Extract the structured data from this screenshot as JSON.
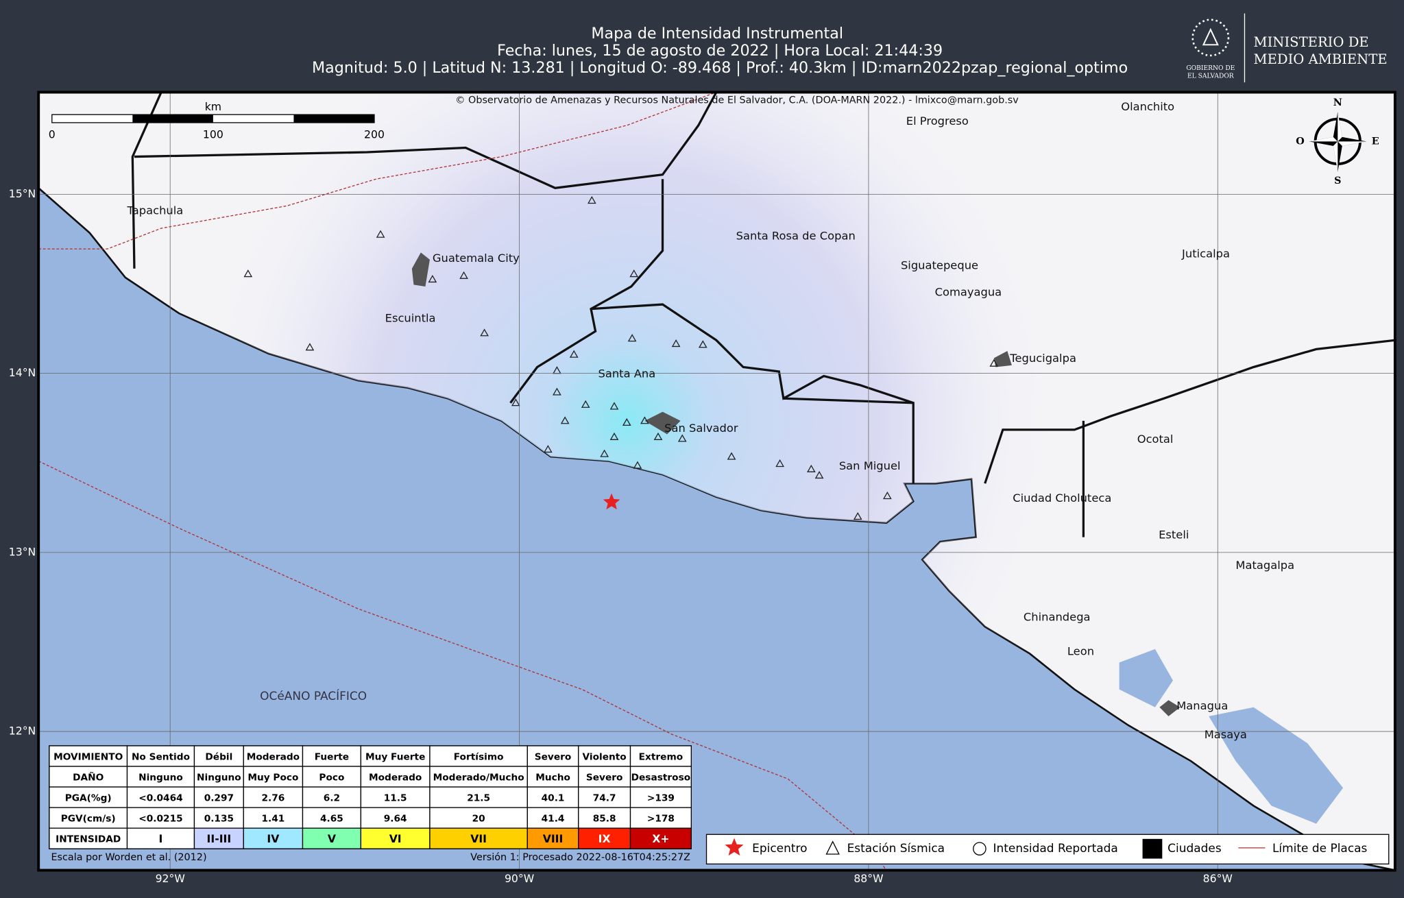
{
  "header": {
    "title": "Mapa de Intensidad Instrumental",
    "line2": "Fecha: lunes, 15 de agosto de 2022 | Hora Local: 21:44:39",
    "line3": "Magnitud: 5.0 | Latitud N: 13.281 | Longitud O: -89.468 | Prof.: 40.3km | ID:marn2022pzap_regional_optimo"
  },
  "logo": {
    "small1": "GOBIERNO DE",
    "small2": "EL SALVADOR",
    "name1": "MINISTERIO DE",
    "name2": "MEDIO AMBIENTE"
  },
  "map": {
    "copyright": "© Observatorio de Amenazas y Recursos Naturales de El Salvador, C.A. (DOA-MARN 2022.) - lmixco@marn.gob.sv",
    "lon_ticks": [
      {
        "value": -92,
        "label": "92°W"
      },
      {
        "value": -90,
        "label": "90°W"
      },
      {
        "value": -88,
        "label": "88°W"
      },
      {
        "value": -86,
        "label": "86°W"
      }
    ],
    "lat_ticks": [
      {
        "value": 15,
        "label": "15°N"
      },
      {
        "value": 14,
        "label": "14°N"
      },
      {
        "value": 13,
        "label": "13°N"
      },
      {
        "value": 12,
        "label": "12°N"
      }
    ],
    "scale": {
      "unit": "km",
      "ticks": [
        0,
        100,
        200
      ]
    },
    "compass": {
      "n": "N",
      "s": "S",
      "e": "E",
      "w": "O"
    },
    "ocean": "OCéANO PACÍFICO",
    "cities": [
      "Tapachula",
      "Guatemala City",
      "Escuintla",
      "Santa Ana",
      "San Salvador",
      "San Miguel",
      "Santa Rosa de Copan",
      "El Progreso",
      "Olanchito",
      "Siguatepeque",
      "Comayagua",
      "Juticalpa",
      "Tegucigalpa",
      "Ocotal",
      "Ciudad Choluteca",
      "Esteli",
      "Matagalpa",
      "Chinandega",
      "Leon",
      "Managua",
      "Masaya"
    ]
  },
  "table": {
    "rows": [
      [
        "MOVIMIENTO",
        "No Sentido",
        "Débil",
        "Moderado",
        "Fuerte",
        "Muy Fuerte",
        "Fortísimo",
        "Severo",
        "Violento",
        "Extremo"
      ],
      [
        "DAÑO",
        "Ninguno",
        "Ninguno",
        "Muy Poco",
        "Poco",
        "Moderado",
        "Moderado/Mucho",
        "Mucho",
        "Severo",
        "Desastroso"
      ],
      [
        "PGA(%g)",
        "<0.0464",
        "0.297",
        "2.76",
        "6.2",
        "11.5",
        "21.5",
        "40.1",
        "74.7",
        ">139"
      ],
      [
        "PGV(cm/s)",
        "<0.0215",
        "0.135",
        "1.41",
        "4.65",
        "9.64",
        "20",
        "41.4",
        "85.8",
        ">178"
      ],
      [
        "INTENSIDAD",
        "I",
        "II-III",
        "IV",
        "V",
        "VI",
        "VII",
        "VIII",
        "IX",
        "X+"
      ]
    ],
    "intensity_colors": [
      "#ffffff",
      "#ffffff",
      "#c8d4ff",
      "#a0e8ff",
      "#80ffb0",
      "#ffff30",
      "#ffd000",
      "#ff9a00",
      "#ff2000",
      "#c80000"
    ]
  },
  "legend": [
    "Epicentro",
    "Estación Sísmica",
    "Intensidad Reportada",
    "Ciudades",
    "Límite de Placas"
  ],
  "footer": {
    "left": "Escala por Worden et al. (2012)",
    "right": "Versión 1: Procesado 2022-08-16T04:25:27Z"
  }
}
